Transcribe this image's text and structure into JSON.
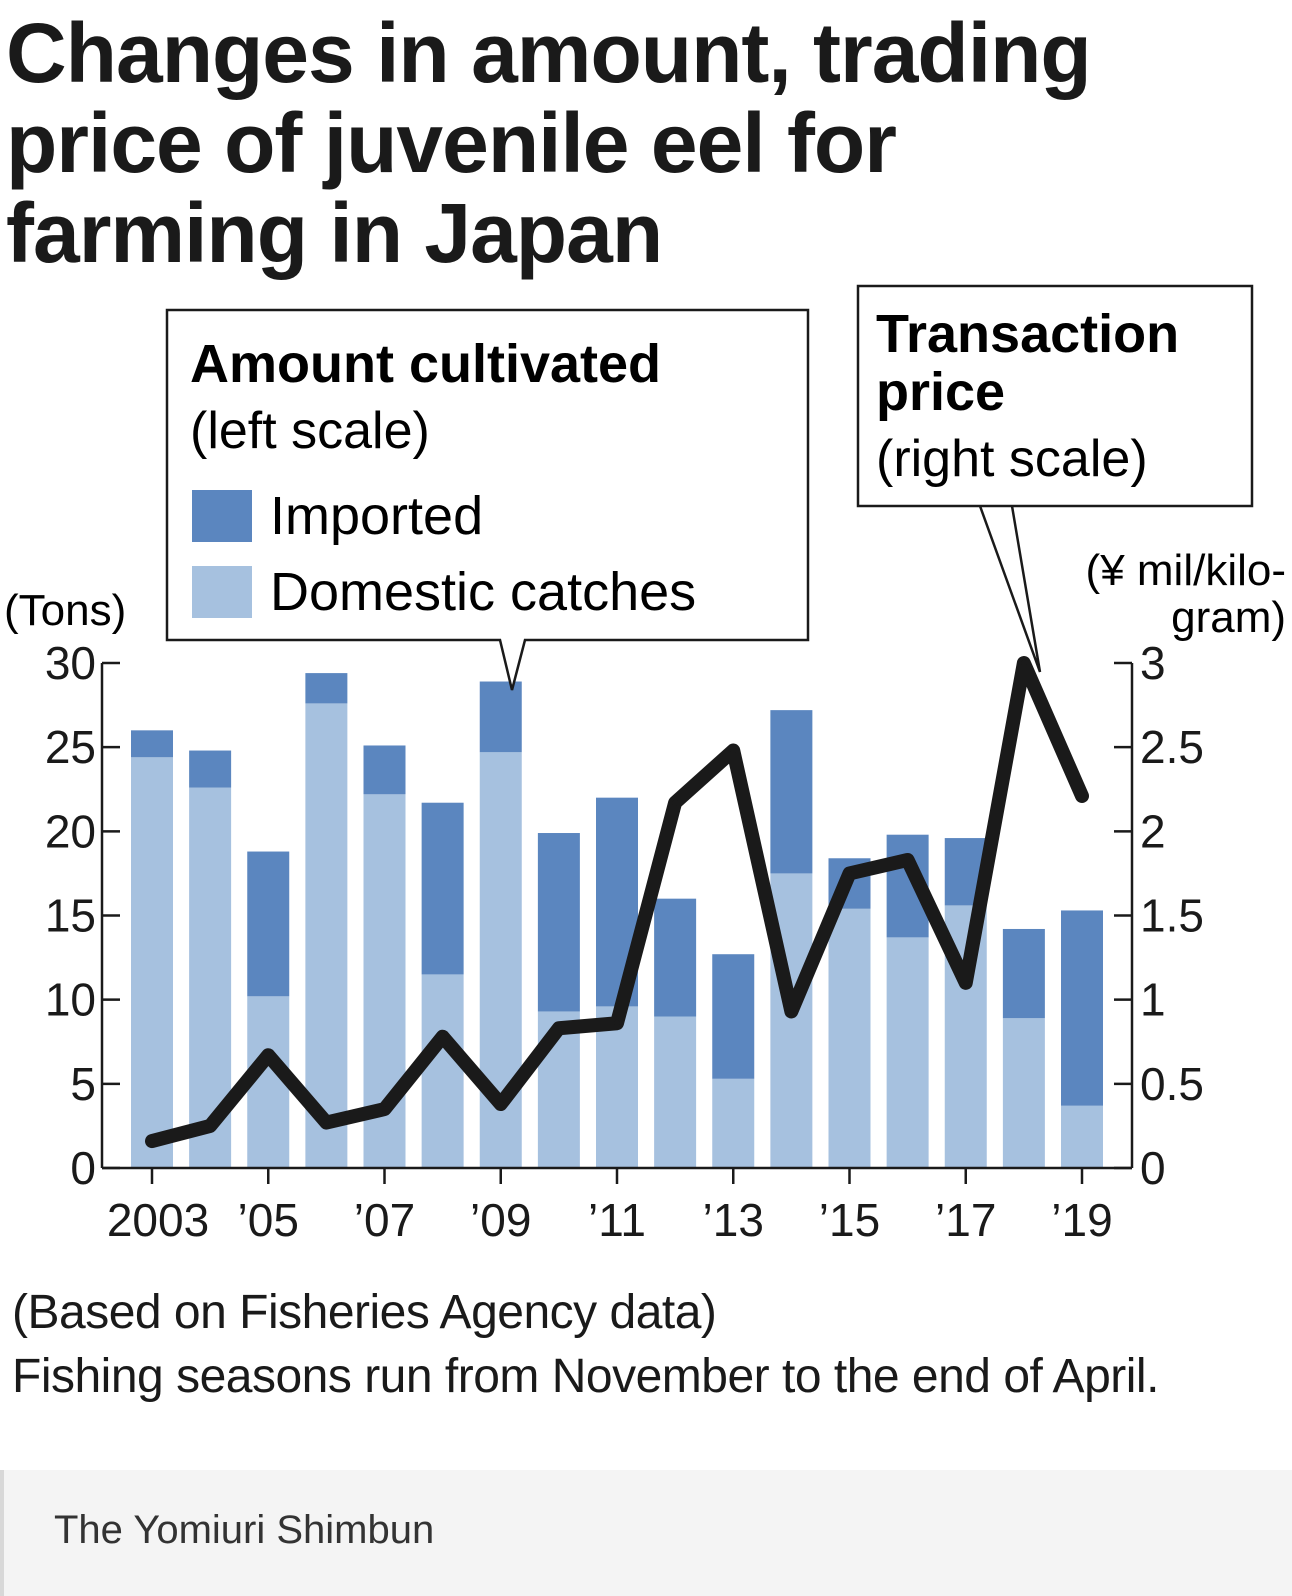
{
  "title_lines": [
    "Changes in amount, trading",
    "price of juvenile eel for",
    "farming in Japan"
  ],
  "legend": {
    "amount_title": "Amount cultivated",
    "amount_scale": "(left scale)",
    "imported_label": "Imported",
    "domestic_label": "Domestic catches",
    "price_title_1": "Transaction",
    "price_title_2": "price",
    "price_scale": "(right scale)"
  },
  "axis": {
    "left_unit": "(Tons)",
    "right_unit_1": "(¥ mil/kilo-",
    "right_unit_2": "gram)"
  },
  "source": "(Based on Fisheries Agency data)",
  "note": "Fishing seasons run from November to the end of April.",
  "credit": "The Yomiuri Shimbun",
  "colors": {
    "imported": "#5b86bf",
    "domestic": "#a6c1df",
    "line": "#1a1a1a"
  },
  "chart_data": {
    "type": "bar",
    "subtype": "stacked bar with line on secondary axis",
    "x": [
      2003,
      2004,
      2005,
      2006,
      2007,
      2008,
      2009,
      2010,
      2011,
      2012,
      2013,
      2014,
      2015,
      2016,
      2017,
      2018,
      2019
    ],
    "x_tick_labels": [
      "2003",
      "’05",
      "’07",
      "’09",
      "’11",
      "’13",
      "’15",
      "’17",
      "’19"
    ],
    "x_tick_years": [
      2003,
      2005,
      2007,
      2009,
      2011,
      2013,
      2015,
      2017,
      2019
    ],
    "series": [
      {
        "name": "Domestic catches",
        "axis": "left",
        "values": [
          24.4,
          22.6,
          10.2,
          27.6,
          22.2,
          11.5,
          24.7,
          9.3,
          9.6,
          9.0,
          5.3,
          17.5,
          15.4,
          13.7,
          15.6,
          8.9,
          3.7
        ]
      },
      {
        "name": "Imported",
        "axis": "left",
        "values": [
          1.6,
          2.2,
          8.6,
          1.8,
          2.9,
          10.2,
          4.2,
          10.6,
          12.4,
          7.0,
          7.4,
          9.7,
          3.0,
          6.1,
          4.0,
          5.3,
          11.6
        ]
      },
      {
        "name": "Transaction price",
        "type": "line",
        "axis": "right",
        "values": [
          0.16,
          0.25,
          0.67,
          0.27,
          0.35,
          0.78,
          0.38,
          0.83,
          0.86,
          2.17,
          2.48,
          0.93,
          1.75,
          1.83,
          1.1,
          3.0,
          2.21
        ]
      }
    ],
    "ylim_left": [
      0,
      30
    ],
    "yticks_left": [
      0,
      5,
      10,
      15,
      20,
      25,
      30
    ],
    "ylim_right": [
      0,
      3
    ],
    "yticks_right": [
      "0",
      "0.5",
      "1",
      "1.5",
      "2",
      "2.5",
      "3"
    ],
    "grid": false
  }
}
